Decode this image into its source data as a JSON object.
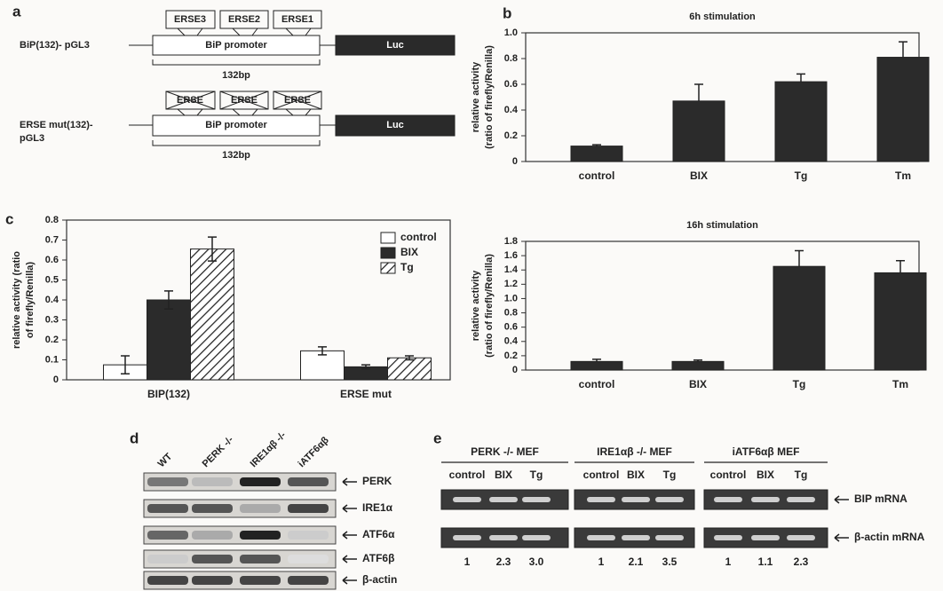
{
  "chart_data": [
    {
      "type": "bar",
      "title": "6h stimulation",
      "y_label": [
        "relative activity",
        "(ratio of firefly/Renilla)"
      ],
      "categories": [
        "control",
        "BIX",
        "Tg",
        "Tm"
      ],
      "values": [
        0.12,
        0.47,
        0.62,
        0.81
      ],
      "errors": [
        0.01,
        0.13,
        0.06,
        0.12
      ],
      "color": "#2b2b2b",
      "ylim": [
        0,
        1.0
      ],
      "yticks": [
        0,
        0.2,
        0.4,
        0.6,
        0.8,
        {
          "value": 1.0,
          "label": "1.0"
        }
      ]
    },
    {
      "type": "bar",
      "title": "16h stimulation",
      "y_label": [
        "relative activity",
        "(ratio of firefly/Renilla)"
      ],
      "categories": [
        "control",
        "BIX",
        "Tg",
        "Tm"
      ],
      "values": [
        0.12,
        0.12,
        1.45,
        1.36
      ],
      "errors": [
        0.03,
        0.02,
        0.22,
        0.17
      ],
      "color": "#2b2b2b",
      "ylim": [
        0,
        1.8
      ],
      "yticks": [
        0,
        0.2,
        0.4,
        0.6,
        0.8,
        {
          "value": 1.0,
          "label": "1.0"
        },
        1.2,
        1.4,
        1.6,
        1.8
      ]
    },
    {
      "type": "grouped_bar",
      "y_label": [
        "relative activity (ratio",
        "of firefly/Renilla)"
      ],
      "categories": [
        "BIP(132)",
        "ERSE mut"
      ],
      "series": [
        {
          "name": "control",
          "color": "#ffffff",
          "values": [
            0.075,
            0.145
          ],
          "errors": [
            0.045,
            0.02
          ]
        },
        {
          "name": "BIX",
          "color": "#2b2b2b",
          "values": [
            0.4,
            0.065
          ],
          "errors": [
            0.045,
            0.01
          ]
        },
        {
          "name": "Tg",
          "color": "#ffffff",
          "hatch": true,
          "values": [
            0.655,
            0.11
          ],
          "errors": [
            0.06,
            0.01
          ]
        }
      ],
      "legend": "upper right",
      "ylim": [
        0,
        0.8
      ],
      "yticks": [
        0,
        0.1,
        0.2,
        0.3,
        0.4,
        0.5,
        0.6,
        0.7,
        0.8
      ]
    }
  ],
  "panel_labels": [
    "a",
    "b",
    "c",
    "d",
    "e"
  ],
  "panel_a": {
    "construct1": {
      "name": "BiP(132)- pGL3",
      "erse": [
        "ERSE3",
        "ERSE2",
        "ERSE1"
      ],
      "promoter": "BiP promoter",
      "reporter": "Luc",
      "length": "132bp"
    },
    "construct2": {
      "name": [
        "ERSE mut(132)-",
        "pGL3"
      ],
      "erse": [
        "ERSE",
        "ERSE",
        "ERSE"
      ],
      "promoter": "BiP promoter",
      "reporter": "Luc",
      "length": "132bp"
    }
  },
  "panel_d": {
    "columns": [
      "WT",
      "PERK -/-",
      "IRE1αβ -/-",
      "iATF6αβ"
    ],
    "rows": [
      "PERK",
      "IRE1α",
      "ATF6α",
      "ATF6β",
      "β-actin"
    ]
  },
  "panel_e": {
    "groups": [
      "PERK -/- MEF",
      "IRE1αβ -/- MEF",
      "iATF6αβ MEF"
    ],
    "lanes": [
      "control",
      "BIX",
      "Tg",
      "control",
      "BIX",
      "Tg",
      "control",
      "BIX",
      "Tg"
    ],
    "rows": [
      "BIP mRNA",
      "β-actin mRNA"
    ],
    "fold": [
      "1",
      "2.3",
      "3.0",
      "1",
      "2.1",
      "3.5",
      "1",
      "1.1",
      "2.3"
    ]
  }
}
